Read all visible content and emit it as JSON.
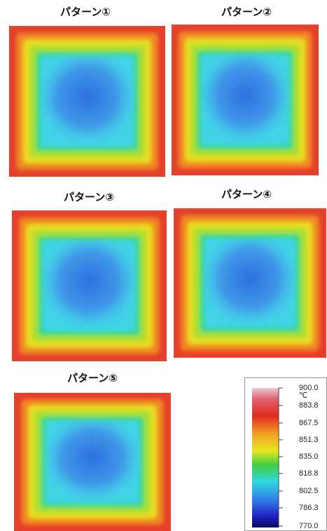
{
  "panels": [
    {
      "label": "パターン①"
    },
    {
      "label": "パターン②"
    },
    {
      "label": "パターン③"
    },
    {
      "label": "パターン④"
    },
    {
      "label": "パターン⑤"
    }
  ],
  "colorbar": {
    "unit": "℃",
    "ticks": [
      "900.0",
      "883.8",
      "867.5",
      "851.3",
      "835.0",
      "818.8",
      "802.5",
      "786.3",
      "770.0"
    ]
  }
}
